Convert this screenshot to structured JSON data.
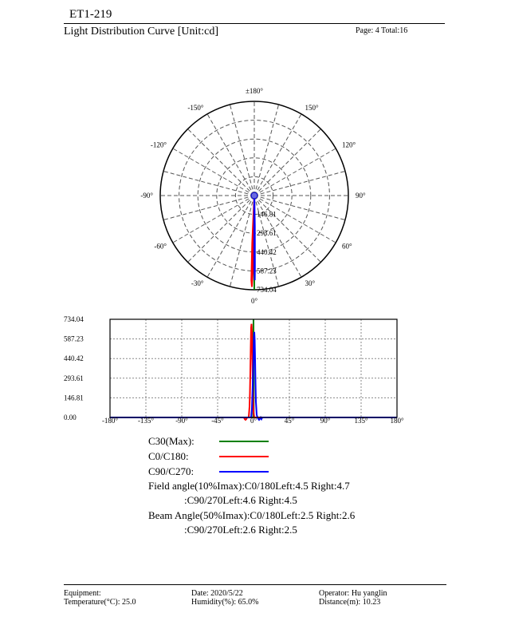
{
  "header": {
    "title": "ET1-219",
    "subtitle": "Light Distribution Curve [Unit:cd]",
    "page": "Page: 4  Total:16"
  },
  "chart_data": [
    {
      "type": "polar",
      "angle_labels": [
        {
          "deg": 180,
          "text": "±180°"
        },
        {
          "deg": -150,
          "text": "-150°"
        },
        {
          "deg": 150,
          "text": "150°"
        },
        {
          "deg": -120,
          "text": "-120°"
        },
        {
          "deg": 120,
          "text": "120°"
        },
        {
          "deg": -90,
          "text": "-90°"
        },
        {
          "deg": 90,
          "text": "90°"
        },
        {
          "deg": -60,
          "text": "-60°"
        },
        {
          "deg": 60,
          "text": "60°"
        },
        {
          "deg": -30,
          "text": "-30°"
        },
        {
          "deg": 30,
          "text": "30°"
        },
        {
          "deg": 0,
          "text": "0°"
        }
      ],
      "ring_values": [
        146.81,
        293.61,
        440.42,
        587.23,
        734.04
      ],
      "ring_labels": [
        "146.81",
        "293.61",
        "440.42",
        "587.23",
        "734.04"
      ],
      "rmax": 734.04,
      "series": [
        {
          "name": "C30(Max)",
          "color": "#008000",
          "points": [
            [
              0,
              734.04
            ]
          ]
        },
        {
          "name": "C0/C180",
          "color": "#ff0000",
          "points": [
            [
              -3,
              0
            ],
            [
              -2.5,
              367
            ],
            [
              -2,
              660
            ],
            [
              -1.5,
              712
            ],
            [
              -1,
              560
            ],
            [
              0,
              180
            ],
            [
              0.5,
              60
            ],
            [
              1,
              20
            ],
            [
              2,
              0
            ]
          ]
        },
        {
          "name": "C90/C270",
          "color": "#0000ff",
          "points": [
            [
              -1,
              0
            ],
            [
              -0.3,
              120
            ],
            [
              0,
              560
            ],
            [
              0.3,
              660
            ],
            [
              0.5,
              560
            ],
            [
              1,
              240
            ],
            [
              1.5,
              40
            ],
            [
              2,
              0
            ]
          ]
        }
      ]
    },
    {
      "type": "line",
      "xlim": [
        -180,
        180
      ],
      "ylim": [
        0,
        734.04
      ],
      "x_ticks": [
        -180,
        -135,
        -90,
        -45,
        0,
        45,
        90,
        135,
        180
      ],
      "x_tick_labels": [
        "-180°",
        "-135°",
        "-90°",
        "-45°",
        "0°",
        "45°",
        "90°",
        "135°",
        "180°"
      ],
      "y_ticks": [
        0,
        146.81,
        293.61,
        440.42,
        587.23,
        734.04
      ],
      "y_tick_labels": [
        "0.00",
        "146.81",
        "293.61",
        "440.42",
        "587.23",
        "734.04"
      ],
      "grid": true,
      "series": [
        {
          "name": "C30(Max)",
          "color": "#008000",
          "x": [
            -180,
            -0.3,
            0,
            0.3,
            180
          ],
          "y": [
            0,
            0,
            734.04,
            0,
            0
          ]
        },
        {
          "name": "C0/C180",
          "color": "#ff0000",
          "x": [
            -180,
            -12,
            -11,
            -10,
            -9,
            -8,
            -7,
            -6,
            -5,
            -4.5,
            -4,
            -3.5,
            -3,
            -2.5,
            -2,
            -1.5,
            -1,
            -0.5,
            0,
            1,
            2,
            180
          ],
          "y": [
            0,
            0,
            -12,
            -18,
            -12,
            0,
            0,
            0,
            80,
            180,
            330,
            520,
            670,
            700,
            640,
            480,
            280,
            120,
            40,
            0,
            0,
            0
          ]
        },
        {
          "name": "C90/C270",
          "color": "#0000ff",
          "x": [
            -180,
            -3,
            -2,
            -1,
            0,
            0.5,
            1,
            1.5,
            2,
            2.5,
            3,
            4,
            5,
            6,
            7,
            8,
            9,
            10,
            11,
            180
          ],
          "y": [
            0,
            0,
            60,
            240,
            470,
            600,
            640,
            580,
            430,
            260,
            120,
            20,
            0,
            -10,
            -18,
            -10,
            0,
            -12,
            0,
            0
          ]
        }
      ]
    }
  ],
  "legend": [
    {
      "label": "C30(Max):",
      "color": "#008000"
    },
    {
      "label": "C0/C180:",
      "color": "#ff0000"
    },
    {
      "label": "C90/C270:",
      "color": "#0000ff"
    }
  ],
  "info": {
    "field1": "Field angle(10%Imax):C0/180Left:4.5 Right:4.7",
    "field2": ":C90/270Left:4.6 Right:4.5",
    "beam1": "Beam Angle(50%Imax):C0/180Left:2.5 Right:2.6",
    "beam2": ":C90/270Left:2.6 Right:2.5"
  },
  "footer": {
    "equipment": "Equipment:",
    "temperature": "Temperature(°C): 25.0",
    "date": "Date: 2020/5/22",
    "humidity": "Humidity(%): 65.0%",
    "operator": "Operator: Hu yanglin",
    "distance": "Distance(m): 10.23"
  }
}
